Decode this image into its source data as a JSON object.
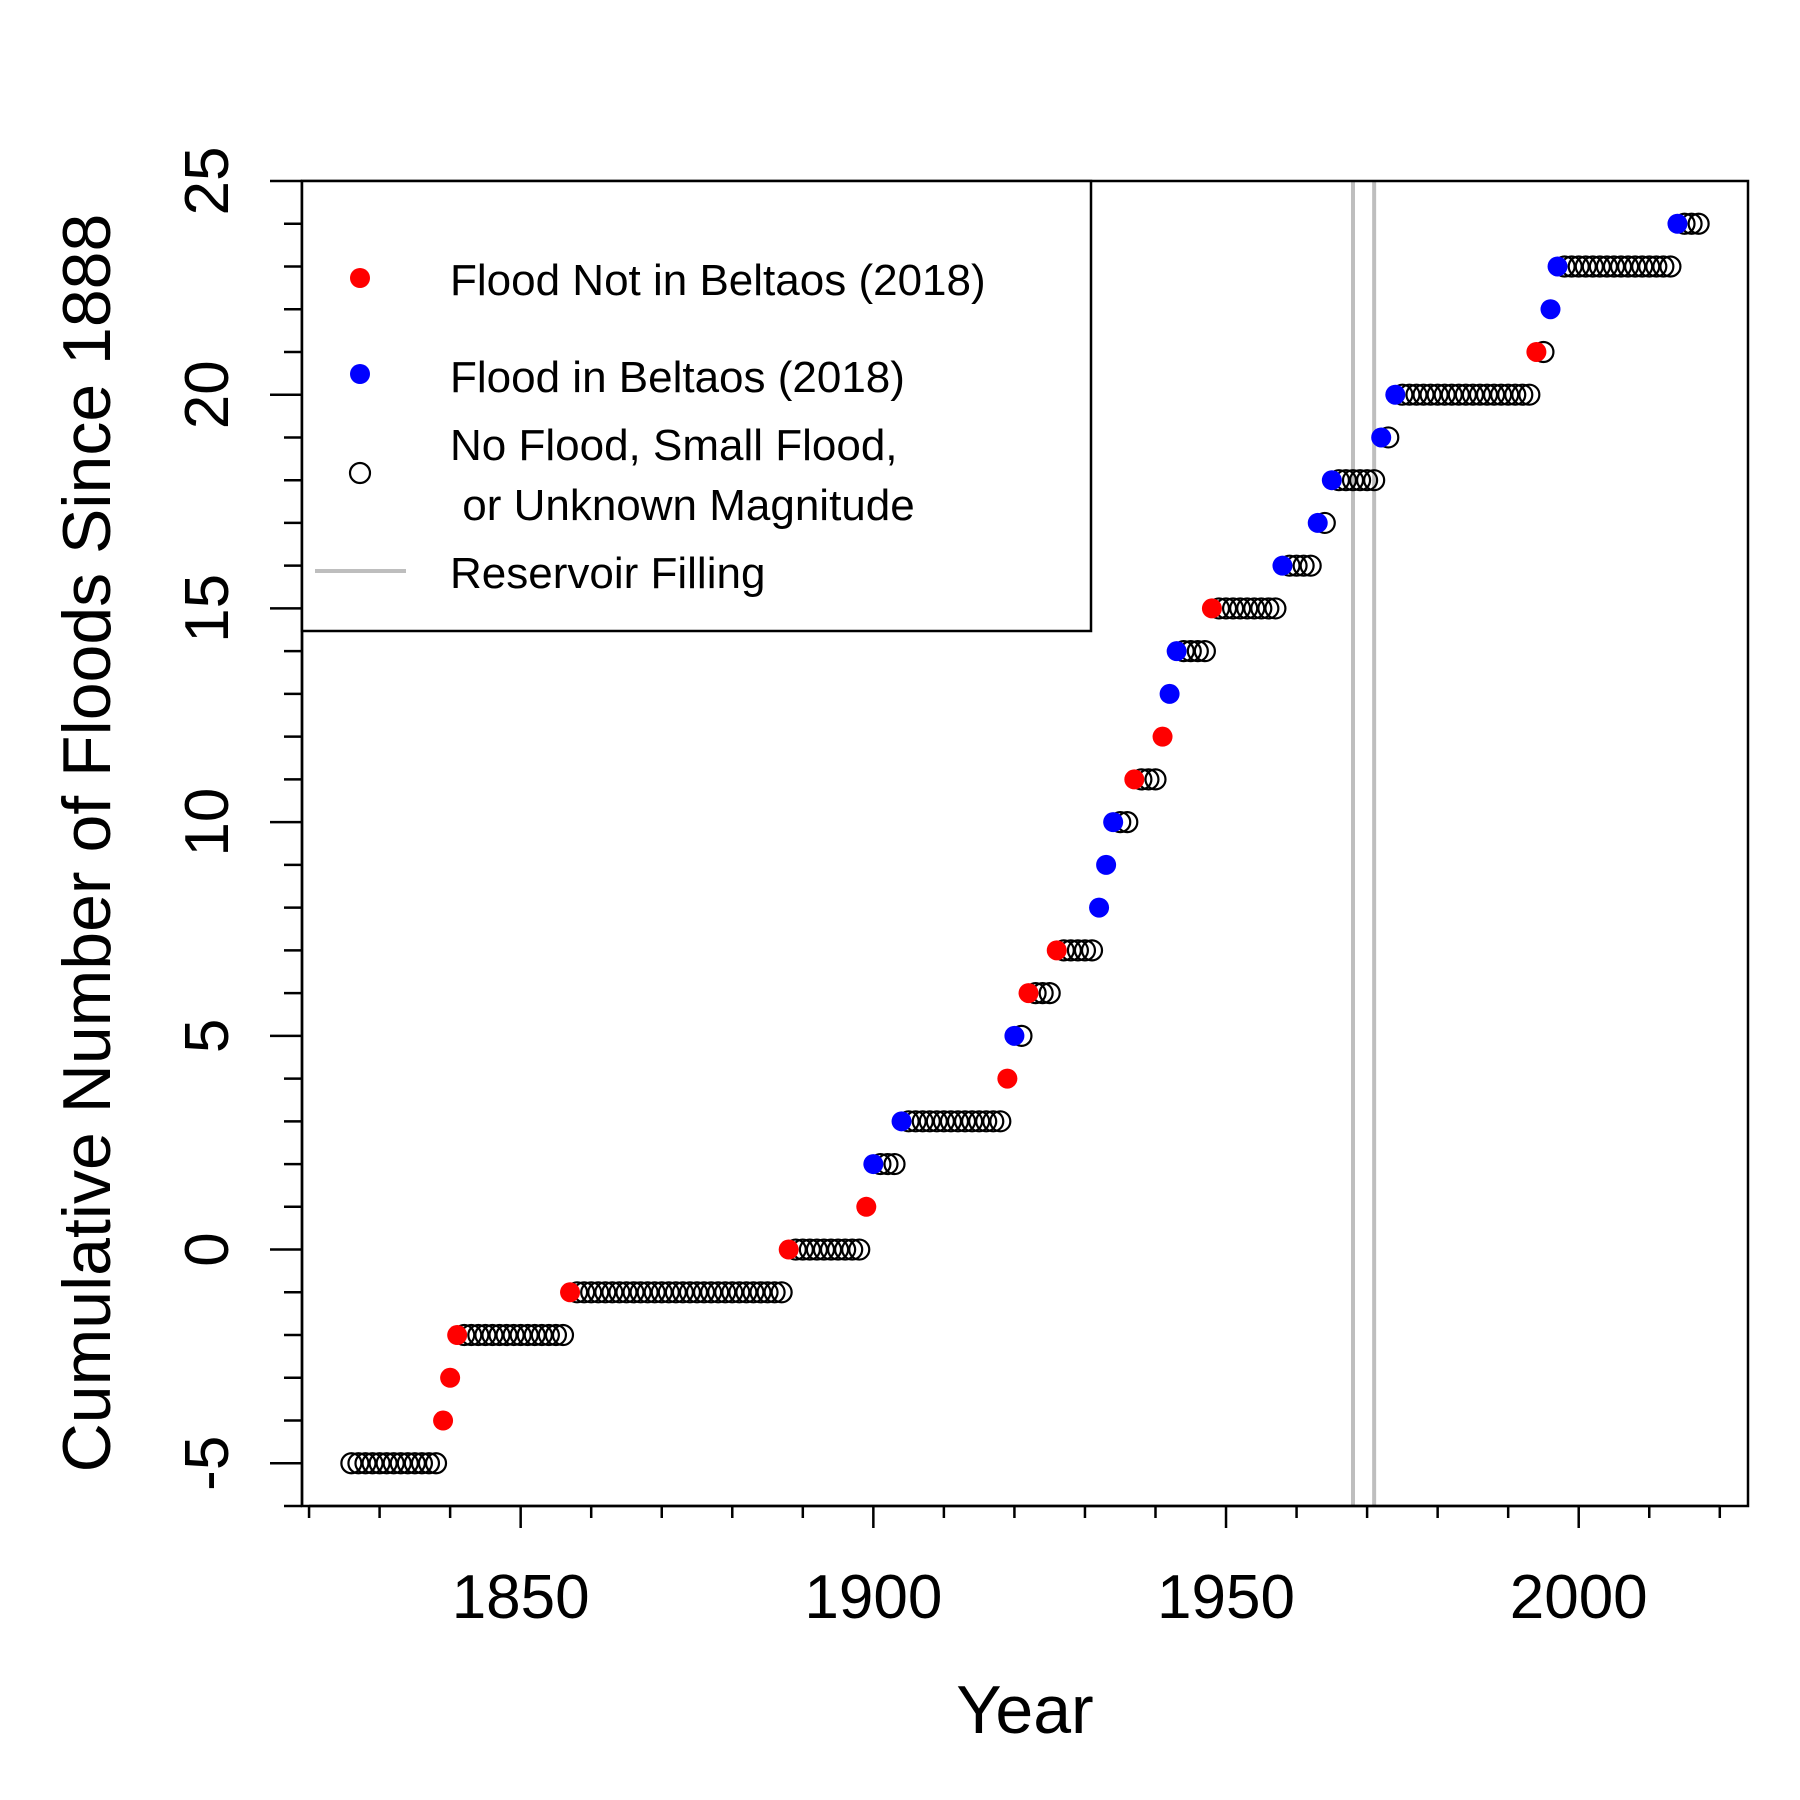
{
  "chart_data": {
    "type": "scatter",
    "title": "",
    "xlabel": "Year",
    "ylabel": "Cumulative Number of Floods Since 1888",
    "xlim": [
      1819,
      2024
    ],
    "ylim": [
      -6,
      25
    ],
    "x_ticks": [
      1850,
      1900,
      1950,
      2000
    ],
    "x_tick_labels": [
      "1850",
      "1900",
      "1950",
      "2000"
    ],
    "x_minor_step": 10,
    "y_ticks": [
      -5,
      0,
      5,
      10,
      15,
      20,
      25
    ],
    "y_tick_labels": [
      "-5",
      "0",
      "5",
      "10",
      "15",
      "20",
      "25"
    ],
    "y_minor_step": 1,
    "grid": false,
    "legend": {
      "position": "top-left",
      "entries": [
        {
          "label": "Flood Not in Beltaos (2018)",
          "marker": "filled-circle",
          "color": "#ff0000"
        },
        {
          "label": "Flood in Beltaos (2018)",
          "marker": "filled-circle",
          "color": "#0000ff"
        },
        {
          "label_line1": "No Flood, Small Flood,",
          "label_line2": " or Unknown Magnitude",
          "marker": "open-circle",
          "color": "#000000"
        },
        {
          "label": "Reservoir Filling",
          "marker": "line",
          "color": "#bebebe"
        }
      ]
    },
    "reference_lines": [
      {
        "x": 1968,
        "color": "#bebebe"
      },
      {
        "x": 1971,
        "color": "#bebebe"
      }
    ],
    "series": [
      {
        "name": "Flood Not in Beltaos (2018)",
        "color": "#ff0000",
        "points": [
          [
            1839,
            -4
          ],
          [
            1840,
            -3
          ],
          [
            1841,
            -2
          ],
          [
            1857,
            -1
          ],
          [
            1888,
            0
          ],
          [
            1899,
            1
          ],
          [
            1919,
            4
          ],
          [
            1922,
            6
          ],
          [
            1926,
            7
          ],
          [
            1937,
            11
          ],
          [
            1941,
            12
          ],
          [
            1948,
            15
          ],
          [
            1994,
            21
          ]
        ]
      },
      {
        "name": "Flood in Beltaos (2018)",
        "color": "#0000ff",
        "points": [
          [
            1900,
            2
          ],
          [
            1904,
            3
          ],
          [
            1920,
            5
          ],
          [
            1932,
            8
          ],
          [
            1933,
            9
          ],
          [
            1934,
            10
          ],
          [
            1942,
            13
          ],
          [
            1943,
            14
          ],
          [
            1958,
            16
          ],
          [
            1963,
            17
          ],
          [
            1965,
            18
          ],
          [
            1972,
            19
          ],
          [
            1974,
            20
          ],
          [
            1996,
            22
          ],
          [
            1997,
            23
          ],
          [
            2014,
            24
          ]
        ]
      },
      {
        "name": "No Flood, Small Flood, or Unknown Magnitude",
        "color": "#000000",
        "runs": [
          {
            "y": -5,
            "x_from": 1826,
            "x_to": 1838
          },
          {
            "y": -2,
            "x_from": 1842,
            "x_to": 1856
          },
          {
            "y": -1,
            "x_from": 1858,
            "x_to": 1887
          },
          {
            "y": 0,
            "x_from": 1889,
            "x_to": 1898
          },
          {
            "y": 2,
            "x_from": 1901,
            "x_to": 1903
          },
          {
            "y": 3,
            "x_from": 1905,
            "x_to": 1918
          },
          {
            "y": 5,
            "x_from": 1921,
            "x_to": 1921
          },
          {
            "y": 6,
            "x_from": 1923,
            "x_to": 1925
          },
          {
            "y": 7,
            "x_from": 1927,
            "x_to": 1931
          },
          {
            "y": 10,
            "x_from": 1935,
            "x_to": 1936
          },
          {
            "y": 11,
            "x_from": 1938,
            "x_to": 1940
          },
          {
            "y": 14,
            "x_from": 1944,
            "x_to": 1947
          },
          {
            "y": 15,
            "x_from": 1949,
            "x_to": 1957
          },
          {
            "y": 16,
            "x_from": 1959,
            "x_to": 1962
          },
          {
            "y": 17,
            "x_from": 1964,
            "x_to": 1964
          },
          {
            "y": 18,
            "x_from": 1966,
            "x_to": 1971
          },
          {
            "y": 19,
            "x_from": 1973,
            "x_to": 1973
          },
          {
            "y": 20,
            "x_from": 1975,
            "x_to": 1993
          },
          {
            "y": 21,
            "x_from": 1995,
            "x_to": 1995
          },
          {
            "y": 23,
            "x_from": 1998,
            "x_to": 2013
          },
          {
            "y": 24,
            "x_from": 2015,
            "x_to": 2017
          }
        ]
      }
    ]
  }
}
